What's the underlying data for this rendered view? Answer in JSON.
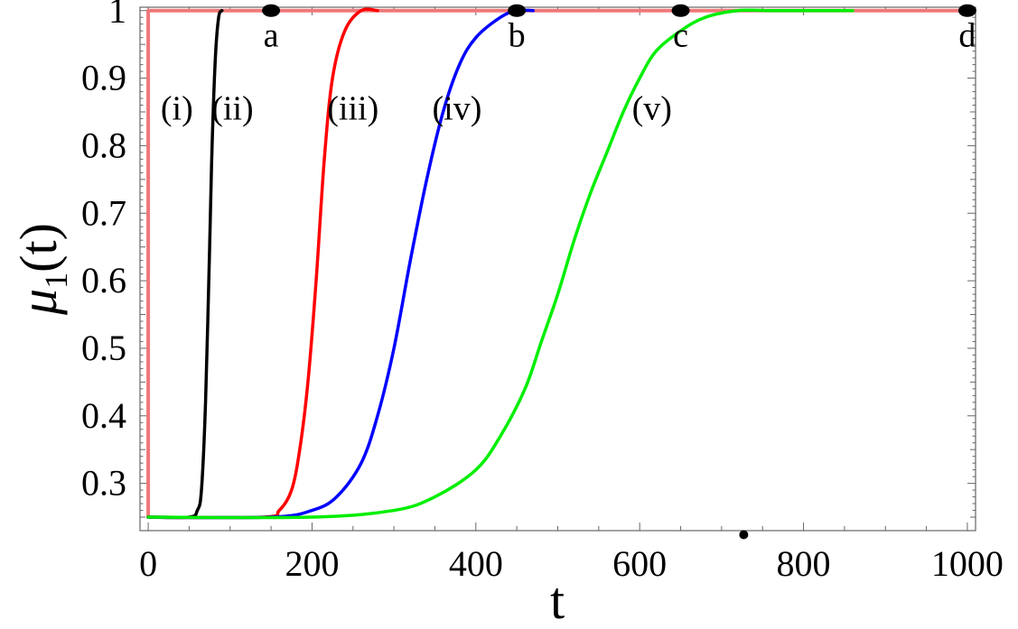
{
  "chart_data": {
    "type": "line",
    "xlabel": "t",
    "ylabel": {
      "main": "μ",
      "sub": "1",
      "suffix": "(t)"
    },
    "xlim": [
      -10,
      1010
    ],
    "ylim": [
      0.23,
      1.005
    ],
    "x_ticks": [
      0,
      200,
      400,
      600,
      800,
      1000
    ],
    "y_ticks": [
      0.3,
      0.4,
      0.5,
      0.6,
      0.7,
      0.8,
      0.9,
      1
    ],
    "x_tick_labels": [
      "0",
      "200",
      "400",
      "600",
      "800",
      "1000"
    ],
    "y_tick_labels": [
      "0.3",
      "0.4",
      "0.5",
      "0.6",
      "0.7",
      "0.8",
      "0.9",
      "1"
    ],
    "series": [
      {
        "label": "(i)",
        "color": "#f07878",
        "x": [
          0,
          0,
          1000
        ],
        "y": [
          0.25,
          1.0,
          1.0
        ]
      },
      {
        "label": "(ii)",
        "color": "#000000",
        "x": [
          0,
          50,
          60,
          65,
          70,
          75,
          78,
          82,
          86,
          90
        ],
        "y": [
          0.25,
          0.25,
          0.26,
          0.29,
          0.42,
          0.65,
          0.8,
          0.93,
          0.99,
          1.0
        ]
      },
      {
        "label": "(iii)",
        "color": "#ff0000",
        "x": [
          0,
          140,
          160,
          175,
          185,
          195,
          205,
          215,
          225,
          240,
          260,
          280
        ],
        "y": [
          0.25,
          0.25,
          0.26,
          0.29,
          0.35,
          0.45,
          0.6,
          0.78,
          0.9,
          0.97,
          1.0,
          1.0
        ]
      },
      {
        "label": "(iv)",
        "color": "#0000ff",
        "x": [
          0,
          150,
          200,
          230,
          260,
          280,
          300,
          320,
          340,
          360,
          380,
          400,
          430,
          450,
          470
        ],
        "y": [
          0.25,
          0.25,
          0.26,
          0.28,
          0.33,
          0.4,
          0.5,
          0.63,
          0.75,
          0.85,
          0.92,
          0.96,
          0.99,
          1.0,
          1.0
        ]
      },
      {
        "label": "(v)",
        "color": "#00ee00",
        "x": [
          0,
          200,
          300,
          350,
          400,
          430,
          460,
          480,
          500,
          520,
          540,
          560,
          580,
          600,
          620,
          650,
          680,
          720,
          760,
          800,
          860
        ],
        "y": [
          0.25,
          0.25,
          0.26,
          0.28,
          0.32,
          0.37,
          0.44,
          0.51,
          0.58,
          0.66,
          0.73,
          0.79,
          0.85,
          0.9,
          0.94,
          0.97,
          0.99,
          1.0,
          1.0,
          1.0,
          1.0
        ]
      }
    ],
    "markers": [
      {
        "label": "a",
        "x": 150,
        "y": 1.0
      },
      {
        "label": "b",
        "x": 450,
        "y": 1.0
      },
      {
        "label": "c",
        "x": 650,
        "y": 1.0
      },
      {
        "label": "d",
        "x": 1000,
        "y": 1.0
      }
    ],
    "curve_labels": [
      {
        "text": "(i)",
        "x": 35,
        "y": 0.855
      },
      {
        "text": "(ii)",
        "x": 103,
        "y": 0.855
      },
      {
        "text": "(iii)",
        "x": 250,
        "y": 0.855
      },
      {
        "text": "(iv)",
        "x": 377,
        "y": 0.855
      },
      {
        "text": "(v)",
        "x": 615,
        "y": 0.855
      }
    ],
    "stray_dot": {
      "x": 727,
      "y": 0.224
    }
  }
}
